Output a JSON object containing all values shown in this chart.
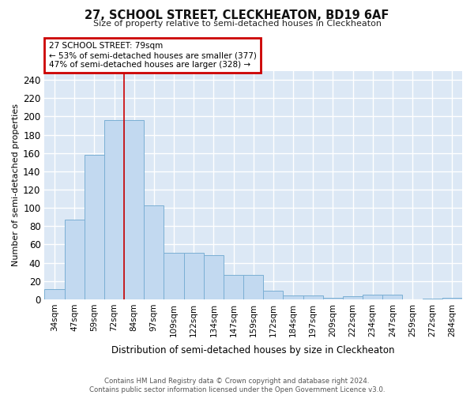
{
  "title": "27, SCHOOL STREET, CLECKHEATON, BD19 6AF",
  "subtitle": "Size of property relative to semi-detached houses in Cleckheaton",
  "xlabel": "Distribution of semi-detached houses by size in Cleckheaton",
  "ylabel": "Number of semi-detached properties",
  "categories": [
    "34sqm",
    "47sqm",
    "59sqm",
    "72sqm",
    "84sqm",
    "97sqm",
    "109sqm",
    "122sqm",
    "134sqm",
    "147sqm",
    "159sqm",
    "172sqm",
    "184sqm",
    "197sqm",
    "209sqm",
    "222sqm",
    "234sqm",
    "247sqm",
    "259sqm",
    "272sqm",
    "284sqm"
  ],
  "values": [
    11,
    87,
    158,
    196,
    196,
    103,
    51,
    51,
    48,
    27,
    27,
    9,
    4,
    4,
    2,
    3,
    5,
    5,
    0,
    1,
    2
  ],
  "bar_color": "#c2d9f0",
  "bar_edge_color": "#7aafd4",
  "highlight_index": 4,
  "highlight_line_color": "#cc0000",
  "annotation_text": "27 SCHOOL STREET: 79sqm\n← 53% of semi-detached houses are smaller (377)\n47% of semi-detached houses are larger (328) →",
  "annotation_box_facecolor": "#ffffff",
  "annotation_box_edgecolor": "#cc0000",
  "ylim": [
    0,
    250
  ],
  "yticks": [
    0,
    20,
    40,
    60,
    80,
    100,
    120,
    140,
    160,
    180,
    200,
    220,
    240
  ],
  "plot_bg": "#dce8f5",
  "fig_bg": "#ffffff",
  "grid_color": "#ffffff",
  "footer_line1": "Contains HM Land Registry data © Crown copyright and database right 2024.",
  "footer_line2": "Contains public sector information licensed under the Open Government Licence v3.0."
}
